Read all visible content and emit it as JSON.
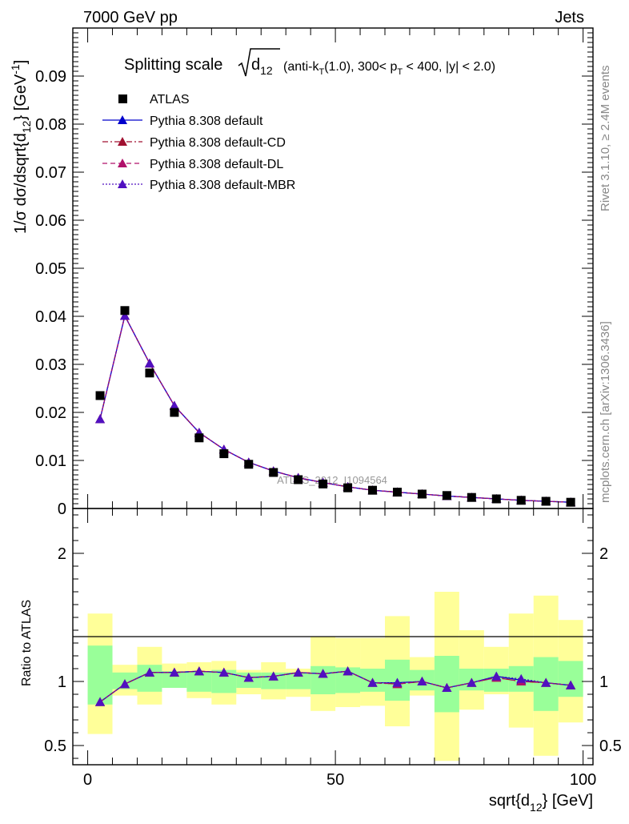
{
  "header": {
    "left": "7000 GeV pp",
    "right": "Jets"
  },
  "side_labels": {
    "rivet": "Rivet 3.1.10, ≥ 2.4M events",
    "mcplots": "mcplots.cern.ch [arXiv:1306.3436]"
  },
  "watermark": "ATLAS_2012_I1094564",
  "title": {
    "prefix": "Splitting scale",
    "d_main": "d",
    "d_sub": "12",
    "paren_open": "(anti-k",
    "k_sub": "T",
    "mid": "(1.0), 300< p",
    "p_sub": "T",
    "rest": " < 400, |y| < 2.0)"
  },
  "axes": {
    "ylabel_main": {
      "a": "1/σ dσ/dsqrt{d",
      "sub": "12",
      "b": "} [GeV",
      "sup": "-1",
      "c": "]"
    },
    "ylabel_ratio": "Ratio to ATLAS",
    "xlabel": {
      "a": "sqrt{d",
      "sub": "12",
      "b": "} [GeV]"
    }
  },
  "legend": [
    {
      "label": "ATLAS",
      "color": "#000000",
      "marker": "square",
      "line": "none"
    },
    {
      "label": "Pythia 8.308 default",
      "color": "#0000cc",
      "marker": "triangle",
      "line": "solid"
    },
    {
      "label": "Pythia 8.308 default-CD",
      "color": "#a01030",
      "marker": "triangle",
      "line": "dashdot"
    },
    {
      "label": "Pythia 8.308 default-DL",
      "color": "#b0106a",
      "marker": "triangle",
      "line": "dashed"
    },
    {
      "label": "Pythia 8.308 default-MBR",
      "color": "#5010c0",
      "marker": "triangle",
      "line": "dotted"
    }
  ],
  "chart_data": {
    "type": "scatter",
    "x": [
      2.5,
      7.5,
      12.5,
      17.5,
      22.5,
      27.5,
      32.5,
      37.5,
      42.5,
      47.5,
      52.5,
      57.5,
      62.5,
      67.5,
      72.5,
      77.5,
      82.5,
      87.5,
      92.5,
      97.5
    ],
    "xlim": [
      -3,
      102
    ],
    "xticks": [
      0,
      50,
      100
    ],
    "main": {
      "ylim": [
        0,
        0.1
      ],
      "yticks": [
        0.01,
        0.02,
        0.03,
        0.04,
        0.05,
        0.06,
        0.07,
        0.08,
        0.09
      ],
      "yticklabels": [
        "0.01",
        "0.02",
        "0.03",
        "0.04",
        "0.05",
        "0.06",
        "0.07",
        "0.08",
        "0.09"
      ],
      "yticklabel_zero": "0",
      "data": {
        "name": "ATLAS",
        "values": [
          0.0235,
          0.0412,
          0.0282,
          0.02,
          0.0147,
          0.0114,
          0.0092,
          0.0075,
          0.006,
          0.0051,
          0.0043,
          0.0038,
          0.0034,
          0.003,
          0.0027,
          0.0023,
          0.002,
          0.0017,
          0.0015,
          0.0013
        ]
      },
      "series": [
        {
          "name": "Pythia 8.308 default",
          "values": [
            0.0186,
            0.0401,
            0.0302,
            0.0214,
            0.0158,
            0.0123,
            0.0096,
            0.0078,
            0.0064,
            0.0054,
            0.0045,
            0.0038,
            0.0034,
            0.003,
            0.0026,
            0.0023,
            0.002,
            0.0017,
            0.0015,
            0.0013
          ]
        },
        {
          "name": "Pythia 8.308 default-CD",
          "values": [
            0.0186,
            0.0401,
            0.0302,
            0.0214,
            0.0158,
            0.0123,
            0.0096,
            0.0078,
            0.0064,
            0.0054,
            0.0045,
            0.0038,
            0.0034,
            0.003,
            0.0026,
            0.0023,
            0.002,
            0.0017,
            0.0015,
            0.0013
          ]
        },
        {
          "name": "Pythia 8.308 default-DL",
          "values": [
            0.0186,
            0.0401,
            0.0302,
            0.0214,
            0.0158,
            0.0123,
            0.0096,
            0.0078,
            0.0064,
            0.0054,
            0.0045,
            0.0038,
            0.0034,
            0.003,
            0.0026,
            0.0023,
            0.002,
            0.0017,
            0.0015,
            0.0013
          ]
        },
        {
          "name": "Pythia 8.308 default-MBR",
          "values": [
            0.0186,
            0.0401,
            0.0302,
            0.0214,
            0.0158,
            0.0123,
            0.0096,
            0.0078,
            0.0064,
            0.0054,
            0.0045,
            0.0038,
            0.0034,
            0.003,
            0.0026,
            0.0023,
            0.002,
            0.0017,
            0.0015,
            0.0013
          ]
        }
      ]
    },
    "ratio": {
      "ylim": [
        0.35,
        2.35
      ],
      "yticks": [
        0.5,
        1,
        2
      ],
      "yticklabels": [
        "0.5",
        "1",
        "2"
      ],
      "band_edges": [
        0,
        5,
        10,
        15,
        20,
        25,
        30,
        35,
        40,
        45,
        50,
        55,
        60,
        65,
        70,
        75,
        80,
        85,
        90,
        95,
        100
      ],
      "band_inner": [
        [
          0.82,
          1.28
        ],
        [
          0.94,
          1.07
        ],
        [
          0.92,
          1.13
        ],
        [
          0.95,
          1.08
        ],
        [
          0.92,
          1.08
        ],
        [
          0.91,
          1.09
        ],
        [
          0.95,
          1.07
        ],
        [
          0.94,
          1.07
        ],
        [
          0.94,
          1.07
        ],
        [
          0.9,
          1.12
        ],
        [
          0.91,
          1.11
        ],
        [
          0.92,
          1.1
        ],
        [
          0.85,
          1.17
        ],
        [
          0.93,
          1.09
        ],
        [
          0.76,
          1.2
        ],
        [
          0.93,
          1.1
        ],
        [
          0.92,
          1.1
        ],
        [
          0.92,
          1.12
        ],
        [
          0.77,
          1.19
        ],
        [
          0.88,
          1.16
        ]
      ],
      "band_outer": [
        [
          0.59,
          1.53
        ],
        [
          0.89,
          1.13
        ],
        [
          0.82,
          1.27
        ],
        [
          0.95,
          1.14
        ],
        [
          0.87,
          1.15
        ],
        [
          0.82,
          1.16
        ],
        [
          0.9,
          1.09
        ],
        [
          0.86,
          1.15
        ],
        [
          0.88,
          1.1
        ],
        [
          0.77,
          1.35
        ],
        [
          0.8,
          1.34
        ],
        [
          0.81,
          1.34
        ],
        [
          0.65,
          1.51
        ],
        [
          0.89,
          1.19
        ],
        [
          0.38,
          1.7
        ],
        [
          0.78,
          1.4
        ],
        [
          0.9,
          1.27
        ],
        [
          0.64,
          1.53
        ],
        [
          0.42,
          1.67
        ],
        [
          0.68,
          1.48
        ]
      ],
      "series": [
        {
          "name": "Pythia 8.308 default",
          "values": [
            0.84,
            0.98,
            1.07,
            1.07,
            1.08,
            1.07,
            1.03,
            1.04,
            1.07,
            1.06,
            1.08,
            0.99,
            0.99,
            1.0,
            0.95,
            0.99,
            1.04,
            1.01,
            0.99,
            0.97
          ]
        },
        {
          "name": "Pythia 8.308 default-CD",
          "values": [
            0.84,
            0.98,
            1.07,
            1.07,
            1.08,
            1.07,
            1.03,
            1.04,
            1.07,
            1.06,
            1.08,
            0.99,
            0.98,
            1.0,
            0.95,
            0.99,
            1.03,
            1.0,
            0.99,
            0.97
          ]
        },
        {
          "name": "Pythia 8.308 default-DL",
          "values": [
            0.84,
            0.98,
            1.07,
            1.07,
            1.08,
            1.07,
            1.03,
            1.04,
            1.07,
            1.06,
            1.08,
            0.99,
            0.98,
            1.0,
            0.95,
            0.99,
            1.03,
            1.0,
            0.99,
            0.97
          ]
        },
        {
          "name": "Pythia 8.308 default-MBR",
          "values": [
            0.84,
            0.98,
            1.07,
            1.07,
            1.08,
            1.07,
            1.03,
            1.04,
            1.07,
            1.06,
            1.08,
            0.99,
            0.99,
            1.0,
            0.95,
            0.99,
            1.04,
            1.02,
            0.99,
            0.97
          ]
        }
      ]
    },
    "colors": {
      "band_inner": "#99ff99",
      "band_outer": "#ffff99"
    }
  }
}
